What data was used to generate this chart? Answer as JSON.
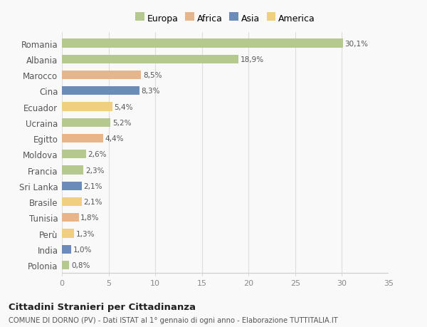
{
  "countries": [
    "Romania",
    "Albania",
    "Marocco",
    "Cina",
    "Ecuador",
    "Ucraina",
    "Egitto",
    "Moldova",
    "Francia",
    "Sri Lanka",
    "Brasile",
    "Tunisia",
    "Perù",
    "India",
    "Polonia"
  ],
  "values": [
    30.1,
    18.9,
    8.5,
    8.3,
    5.4,
    5.2,
    4.4,
    2.6,
    2.3,
    2.1,
    2.1,
    1.8,
    1.3,
    1.0,
    0.8
  ],
  "labels": [
    "30,1%",
    "18,9%",
    "8,5%",
    "8,3%",
    "5,4%",
    "5,2%",
    "4,4%",
    "2,6%",
    "2,3%",
    "2,1%",
    "2,1%",
    "1,8%",
    "1,3%",
    "1,0%",
    "0,8%"
  ],
  "continents": [
    "Europa",
    "Europa",
    "Africa",
    "Asia",
    "America",
    "Europa",
    "Africa",
    "Europa",
    "Europa",
    "Asia",
    "America",
    "Africa",
    "America",
    "Asia",
    "Europa"
  ],
  "continent_colors": {
    "Europa": "#b5c98e",
    "Africa": "#e8b48a",
    "Asia": "#6b8cba",
    "America": "#f0d080"
  },
  "legend_order": [
    "Europa",
    "Africa",
    "Asia",
    "America"
  ],
  "title": "Cittadini Stranieri per Cittadinanza",
  "subtitle": "COMUNE DI DORNO (PV) - Dati ISTAT al 1° gennaio di ogni anno - Elaborazione TUTTITALIA.IT",
  "xlim": [
    0,
    35
  ],
  "xticks": [
    0,
    5,
    10,
    15,
    20,
    25,
    30,
    35
  ],
  "background_color": "#f9f9f9",
  "grid_color": "#dddddd",
  "bar_height": 0.55
}
